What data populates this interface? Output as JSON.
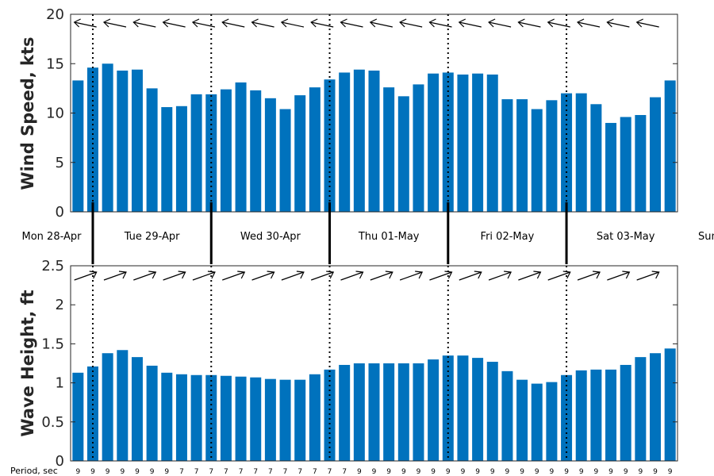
{
  "chart_data": [
    {
      "type": "bar",
      "ylabel": "Wind Speed, kts",
      "ylim": [
        0,
        20
      ],
      "yticks": [
        "0",
        "5",
        "10",
        "15",
        "20"
      ],
      "color": "#0072BD",
      "values": [
        13.3,
        14.6,
        15.0,
        14.3,
        14.4,
        12.5,
        10.6,
        10.7,
        11.9,
        11.9,
        12.4,
        13.1,
        12.3,
        11.5,
        10.4,
        11.8,
        12.6,
        13.4,
        14.1,
        14.4,
        14.3,
        12.6,
        11.7,
        12.9,
        14.0,
        14.1,
        13.9,
        14.0,
        13.9,
        11.4,
        11.4,
        10.4,
        11.3,
        12.0,
        12.0,
        10.9,
        9.0,
        9.6,
        9.8,
        11.6,
        13.3
      ],
      "direction_arrows": "northwest-pointing arrows above bars"
    },
    {
      "type": "bar",
      "ylabel": "Wave Height, ft",
      "ylim": [
        0,
        2.5
      ],
      "yticks": [
        "0",
        "0.5",
        "1",
        "1.5",
        "2",
        "2.5"
      ],
      "color": "#0072BD",
      "values": [
        1.13,
        1.21,
        1.38,
        1.42,
        1.33,
        1.22,
        1.13,
        1.11,
        1.1,
        1.1,
        1.09,
        1.08,
        1.07,
        1.05,
        1.04,
        1.04,
        1.11,
        1.17,
        1.23,
        1.25,
        1.25,
        1.25,
        1.25,
        1.25,
        1.3,
        1.35,
        1.35,
        1.32,
        1.27,
        1.15,
        1.04,
        0.99,
        1.01,
        1.1,
        1.16,
        1.17,
        1.17,
        1.23,
        1.33,
        1.38,
        1.44
      ],
      "direction_arrows": "northeast-pointing arrows above bars"
    }
  ],
  "days": [
    "Mon 28-Apr",
    "Tue 29-Apr",
    "Wed 30-Apr",
    "Thu 01-May",
    "Fri 02-May",
    "Sat 03-May",
    "Sun"
  ],
  "period": {
    "label": "Period, sec",
    "values": [
      "9",
      "9",
      "9",
      "9",
      "9",
      "9",
      "9",
      "7",
      "7",
      "7",
      "7",
      "7",
      "7",
      "7",
      "7",
      "7",
      "7",
      "7",
      "7",
      "9",
      "9",
      "9",
      "9",
      "9",
      "9",
      "9",
      "9",
      "9",
      "9",
      "9",
      "9",
      "9",
      "9",
      "9",
      "9",
      "9",
      "9",
      "9",
      "9",
      "9",
      "9"
    ]
  }
}
